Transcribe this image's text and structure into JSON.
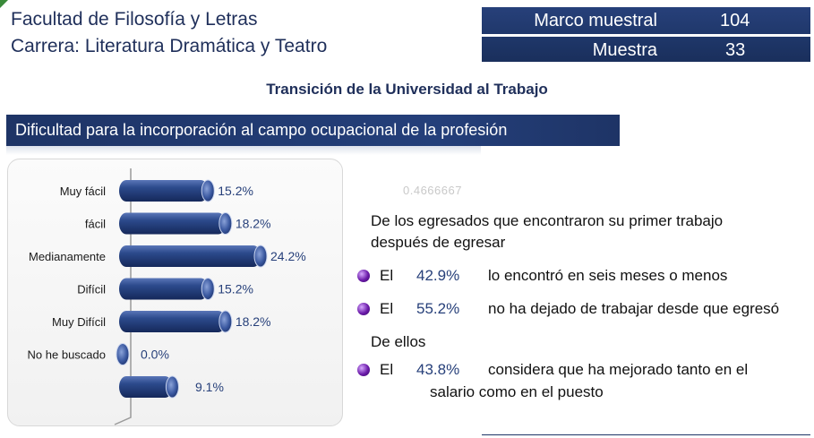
{
  "header": {
    "faculty": "Facultad de Filosofía y Letras",
    "career": "Carrera: Literatura Dramática y Teatro"
  },
  "stats": {
    "frame_label": "Marco muestral",
    "frame_value": "104",
    "sample_label": "Muestra",
    "sample_value": "33"
  },
  "title": "Transición de la Universidad al Trabajo",
  "section_banner": "Dificultad para la incorporación al campo ocupacional  de la profesión",
  "ghost_text": "0.4666667",
  "chart_data": {
    "type": "bar",
    "orientation": "horizontal",
    "categories": [
      "Muy fácil",
      "fácil",
      "Medianamente",
      "Difícil",
      "Muy Difícil",
      "No he buscado",
      ""
    ],
    "values": [
      15.2,
      18.2,
      24.2,
      15.2,
      18.2,
      0.0,
      9.1
    ],
    "value_labels": [
      "15.2%",
      "18.2%",
      "24.2%",
      "15.2%",
      "18.2%",
      "0.0%",
      "9.1%"
    ],
    "title": "",
    "xlabel": "",
    "ylabel": "",
    "bar_color": "#27407a",
    "grid": false,
    "legend": "none"
  },
  "info": {
    "intro_line1": "De los egresados que encontraron su primer trabajo",
    "intro_line2": "después de egresar",
    "items": [
      {
        "prefix": "El",
        "value": "42.9%",
        "text": "lo encontró en seis meses o menos"
      },
      {
        "prefix": "El",
        "value": "55.2%",
        "text": "no ha dejado de trabajar desde que egresó"
      }
    ],
    "sub_intro": "De ellos",
    "item3": {
      "prefix": "El",
      "value": "43.8%",
      "text_line1": "considera que ha mejorado tanto en el",
      "text_line2": "salario como en el puesto"
    }
  },
  "colors": {
    "navy": "#1e3466",
    "bullet": "#6a1aa8",
    "value_text": "#27407a"
  }
}
